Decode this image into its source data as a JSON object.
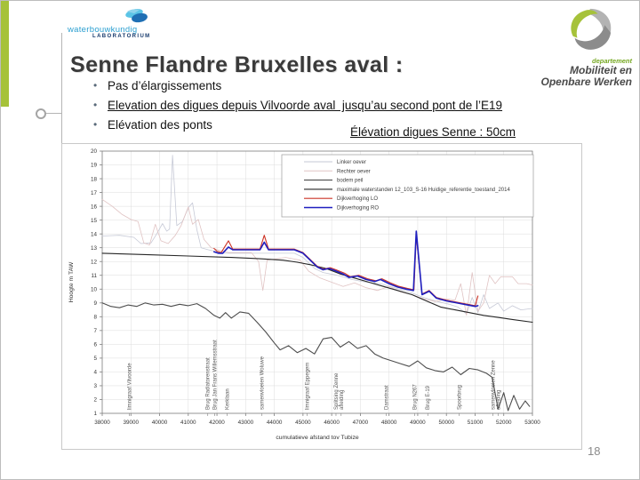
{
  "slide": {
    "title": "Senne Flandre Bruxelles aval :",
    "bullets": [
      "Pas d’élargissements",
      "Elevation des digues depuis Vilvoorde aval  jusqu’au second pont de l’E19",
      "Elévation des ponts"
    ],
    "chart_caption": "Élévation digues Senne : 50cm",
    "page_number": "18"
  },
  "logos": {
    "waterbouwkundig": {
      "line1": "waterbouwkundig",
      "line2": "LABORATORIUM"
    },
    "mow": {
      "dept": "departement",
      "line1": "Mobiliteit en",
      "line2": "Openbare Werken"
    }
  },
  "colors": {
    "accent_green": "#a6c23a",
    "title_gray": "#3a3a3a",
    "wl_blue": "#2b9fd0",
    "wl_navy": "#14386b"
  },
  "chart_data": {
    "type": "line",
    "grid": true,
    "legend_position": "top-center-box",
    "x_axis": {
      "label": "cumulatieve afstand tov Tubize",
      "min": 38000,
      "max": 53000,
      "step": 1000
    },
    "y_axis": {
      "label": "Hoogte m TAW",
      "min": 1,
      "max": 20,
      "step": 1
    },
    "series": [
      {
        "name": "Linker oever",
        "color": "#c6c9d6",
        "width": 0.8,
        "points": [
          [
            38000,
            13.85
          ],
          [
            38600,
            13.9
          ],
          [
            39100,
            13.75
          ],
          [
            39350,
            13.3
          ],
          [
            39700,
            13.35
          ],
          [
            39900,
            14.0
          ],
          [
            40100,
            14.75
          ],
          [
            40250,
            14.2
          ],
          [
            40350,
            14.35
          ],
          [
            40450,
            19.7
          ],
          [
            40600,
            14.6
          ],
          [
            40800,
            14.9
          ],
          [
            41000,
            15.9
          ],
          [
            41150,
            16.25
          ],
          [
            41300,
            14.3
          ],
          [
            41450,
            13.0
          ],
          [
            41700,
            12.85
          ],
          [
            42200,
            12.6
          ],
          [
            43000,
            12.6
          ],
          [
            44000,
            12.6
          ],
          [
            44700,
            12.6
          ],
          [
            45000,
            12.3
          ],
          [
            45400,
            11.5
          ],
          [
            45700,
            11.2
          ],
          [
            46200,
            11.0
          ],
          [
            46700,
            10.7
          ],
          [
            47200,
            10.5
          ],
          [
            47700,
            10.4
          ],
          [
            48200,
            10.1
          ],
          [
            48700,
            9.8
          ],
          [
            49200,
            9.4
          ],
          [
            49700,
            9.1
          ],
          [
            50100,
            8.9
          ],
          [
            50400,
            8.7
          ],
          [
            50700,
            8.2
          ],
          [
            50900,
            9.4
          ],
          [
            51100,
            8.3
          ],
          [
            51300,
            9.6
          ],
          [
            51500,
            8.6
          ],
          [
            51800,
            9.0
          ],
          [
            52000,
            8.4
          ],
          [
            52300,
            8.8
          ],
          [
            52600,
            8.5
          ],
          [
            53000,
            8.6
          ]
        ]
      },
      {
        "name": "Rechter oever",
        "color": "#e0c3c3",
        "width": 0.8,
        "points": [
          [
            38000,
            16.5
          ],
          [
            38350,
            16.0
          ],
          [
            38700,
            15.4
          ],
          [
            39000,
            15.05
          ],
          [
            39250,
            14.9
          ],
          [
            39450,
            13.35
          ],
          [
            39650,
            13.2
          ],
          [
            39850,
            14.7
          ],
          [
            40050,
            13.5
          ],
          [
            40300,
            13.3
          ],
          [
            40550,
            13.9
          ],
          [
            40750,
            14.6
          ],
          [
            41000,
            15.95
          ],
          [
            41150,
            14.7
          ],
          [
            41350,
            15.05
          ],
          [
            41550,
            13.6
          ],
          [
            41800,
            13.0
          ],
          [
            42100,
            12.8
          ],
          [
            42400,
            12.65
          ],
          [
            43200,
            12.65
          ],
          [
            43450,
            12.0
          ],
          [
            43600,
            9.9
          ],
          [
            43750,
            12.1
          ],
          [
            44400,
            12.3
          ],
          [
            44900,
            12.1
          ],
          [
            45200,
            11.3
          ],
          [
            45600,
            10.8
          ],
          [
            46000,
            10.5
          ],
          [
            46400,
            10.2
          ],
          [
            46800,
            10.45
          ],
          [
            47200,
            10.1
          ],
          [
            47600,
            9.9
          ],
          [
            48000,
            10.2
          ],
          [
            48400,
            9.8
          ],
          [
            48800,
            9.6
          ],
          [
            49200,
            9.3
          ],
          [
            49600,
            9.1
          ],
          [
            50000,
            9.3
          ],
          [
            50300,
            9.2
          ],
          [
            50500,
            10.4
          ],
          [
            50700,
            8.1
          ],
          [
            50900,
            11.2
          ],
          [
            51100,
            8.4
          ],
          [
            51300,
            9.0
          ],
          [
            51500,
            11.0
          ],
          [
            51700,
            10.4
          ],
          [
            51900,
            10.9
          ],
          [
            52300,
            10.9
          ],
          [
            52500,
            10.4
          ],
          [
            52800,
            10.4
          ],
          [
            53000,
            10.3
          ]
        ]
      },
      {
        "name": "bodem peil",
        "color": "#4d4d4d",
        "width": 1.1,
        "points": [
          [
            38000,
            9.0
          ],
          [
            38300,
            8.75
          ],
          [
            38600,
            8.65
          ],
          [
            38900,
            8.85
          ],
          [
            39200,
            8.75
          ],
          [
            39500,
            9.0
          ],
          [
            39800,
            8.85
          ],
          [
            40100,
            8.9
          ],
          [
            40400,
            8.75
          ],
          [
            40700,
            8.9
          ],
          [
            41000,
            8.8
          ],
          [
            41300,
            8.95
          ],
          [
            41600,
            8.6
          ],
          [
            41900,
            8.1
          ],
          [
            42100,
            7.9
          ],
          [
            42300,
            8.3
          ],
          [
            42500,
            7.9
          ],
          [
            42800,
            8.35
          ],
          [
            43100,
            8.25
          ],
          [
            43400,
            7.6
          ],
          [
            43700,
            6.9
          ],
          [
            44000,
            6.1
          ],
          [
            44200,
            5.6
          ],
          [
            44500,
            5.9
          ],
          [
            44800,
            5.4
          ],
          [
            45100,
            5.7
          ],
          [
            45400,
            5.3
          ],
          [
            45700,
            6.4
          ],
          [
            46000,
            6.5
          ],
          [
            46300,
            5.8
          ],
          [
            46600,
            6.2
          ],
          [
            46900,
            5.7
          ],
          [
            47200,
            5.9
          ],
          [
            47500,
            5.3
          ],
          [
            47800,
            5.0
          ],
          [
            48100,
            4.8
          ],
          [
            48400,
            4.6
          ],
          [
            48700,
            4.4
          ],
          [
            49000,
            4.8
          ],
          [
            49300,
            4.3
          ],
          [
            49600,
            4.1
          ],
          [
            49900,
            4.0
          ],
          [
            50200,
            4.35
          ],
          [
            50500,
            3.8
          ],
          [
            50800,
            4.25
          ],
          [
            51100,
            4.15
          ],
          [
            51400,
            3.9
          ],
          [
            51600,
            3.6
          ],
          [
            51800,
            1.3
          ],
          [
            52000,
            2.5
          ],
          [
            52150,
            1.2
          ],
          [
            52350,
            2.3
          ],
          [
            52550,
            1.3
          ],
          [
            52750,
            1.9
          ],
          [
            52900,
            1.5
          ]
        ]
      },
      {
        "name": "maximale waterstanden 12_103_S-16 Huidige_referentie_toestand_2014",
        "color": "#262626",
        "width": 1.1,
        "points": [
          [
            38000,
            12.6
          ],
          [
            39500,
            12.5
          ],
          [
            41000,
            12.4
          ],
          [
            42500,
            12.3
          ],
          [
            43500,
            12.2
          ],
          [
            44300,
            12.1
          ],
          [
            44800,
            11.95
          ],
          [
            45300,
            11.75
          ],
          [
            45800,
            11.5
          ],
          [
            46300,
            11.1
          ],
          [
            46800,
            10.8
          ],
          [
            47300,
            10.5
          ],
          [
            47800,
            10.2
          ],
          [
            48300,
            9.9
          ],
          [
            48800,
            9.6
          ],
          [
            49300,
            9.15
          ],
          [
            49800,
            8.7
          ],
          [
            50300,
            8.5
          ],
          [
            50800,
            8.3
          ],
          [
            51300,
            8.1
          ],
          [
            51800,
            7.95
          ],
          [
            52300,
            7.8
          ],
          [
            53000,
            7.6
          ]
        ]
      },
      {
        "name": "Dijkverhoging LO",
        "color": "#cc3326",
        "width": 1.1,
        "points": [
          [
            41900,
            12.95
          ],
          [
            42000,
            12.75
          ],
          [
            42150,
            12.65
          ],
          [
            42400,
            13.5
          ],
          [
            42550,
            12.9
          ],
          [
            43000,
            12.9
          ],
          [
            43500,
            12.9
          ],
          [
            43650,
            13.9
          ],
          [
            43800,
            12.9
          ],
          [
            44700,
            12.9
          ],
          [
            45000,
            12.65
          ],
          [
            45200,
            12.25
          ],
          [
            45500,
            11.65
          ],
          [
            45700,
            11.45
          ],
          [
            45950,
            11.55
          ],
          [
            46150,
            11.4
          ],
          [
            46450,
            11.15
          ],
          [
            46650,
            10.9
          ],
          [
            46950,
            11.0
          ],
          [
            47250,
            10.75
          ],
          [
            47550,
            10.6
          ],
          [
            47750,
            10.75
          ],
          [
            48050,
            10.45
          ],
          [
            48350,
            10.2
          ],
          [
            48650,
            10.05
          ],
          [
            48870,
            9.95
          ],
          [
            48950,
            13.9
          ],
          [
            49150,
            9.65
          ],
          [
            49400,
            9.9
          ],
          [
            49650,
            9.4
          ],
          [
            50000,
            9.2
          ],
          [
            50500,
            9.0
          ],
          [
            51000,
            8.8
          ],
          [
            51100,
            9.5
          ]
        ]
      },
      {
        "name": "Dijkverhoging RO",
        "color": "#1f1fbf",
        "width": 1.6,
        "points": [
          [
            41900,
            12.7
          ],
          [
            42050,
            12.6
          ],
          [
            42200,
            12.6
          ],
          [
            42400,
            13.05
          ],
          [
            42550,
            12.85
          ],
          [
            43000,
            12.85
          ],
          [
            43500,
            12.85
          ],
          [
            43650,
            13.4
          ],
          [
            43800,
            12.85
          ],
          [
            44700,
            12.85
          ],
          [
            45000,
            12.6
          ],
          [
            45200,
            12.2
          ],
          [
            45500,
            11.6
          ],
          [
            45700,
            11.4
          ],
          [
            45900,
            11.5
          ],
          [
            46100,
            11.35
          ],
          [
            46400,
            11.1
          ],
          [
            46600,
            10.85
          ],
          [
            46900,
            10.95
          ],
          [
            47200,
            10.7
          ],
          [
            47500,
            10.55
          ],
          [
            47700,
            10.7
          ],
          [
            48000,
            10.4
          ],
          [
            48300,
            10.15
          ],
          [
            48600,
            10.0
          ],
          [
            48850,
            9.9
          ],
          [
            48950,
            14.2
          ],
          [
            49150,
            9.6
          ],
          [
            49400,
            9.85
          ],
          [
            49650,
            9.35
          ],
          [
            50000,
            9.15
          ],
          [
            50500,
            8.95
          ],
          [
            51000,
            8.75
          ],
          [
            51100,
            8.8
          ]
        ]
      }
    ],
    "locations": [
      {
        "x": 38950,
        "label": "limnigraaf Vilvoorde"
      },
      {
        "x": 41680,
        "label": "Brug Radiatorenstraat"
      },
      {
        "x": 41920,
        "label": "Brug Jan Frans Willemsstraat"
      },
      {
        "x": 42350,
        "label": "Kerklaan"
      },
      {
        "x": 43570,
        "label": "samenvloeien Woluwe"
      },
      {
        "x": 45150,
        "label": "limnigraaf Eppegem"
      },
      {
        "x": 46150,
        "label": "Splitsing Zenne"
      },
      {
        "x": 46330,
        "label": "afleiding"
      },
      {
        "x": 47900,
        "label": "Damstraat"
      },
      {
        "x": 48900,
        "label": "Brug N267"
      },
      {
        "x": 49350,
        "label": "Brug E-19"
      },
      {
        "x": 50450,
        "label": "Spoorbrug"
      },
      {
        "x": 51620,
        "label": "samenvloeien Zenne"
      },
      {
        "x": 51800,
        "label": "afleiding"
      }
    ]
  }
}
